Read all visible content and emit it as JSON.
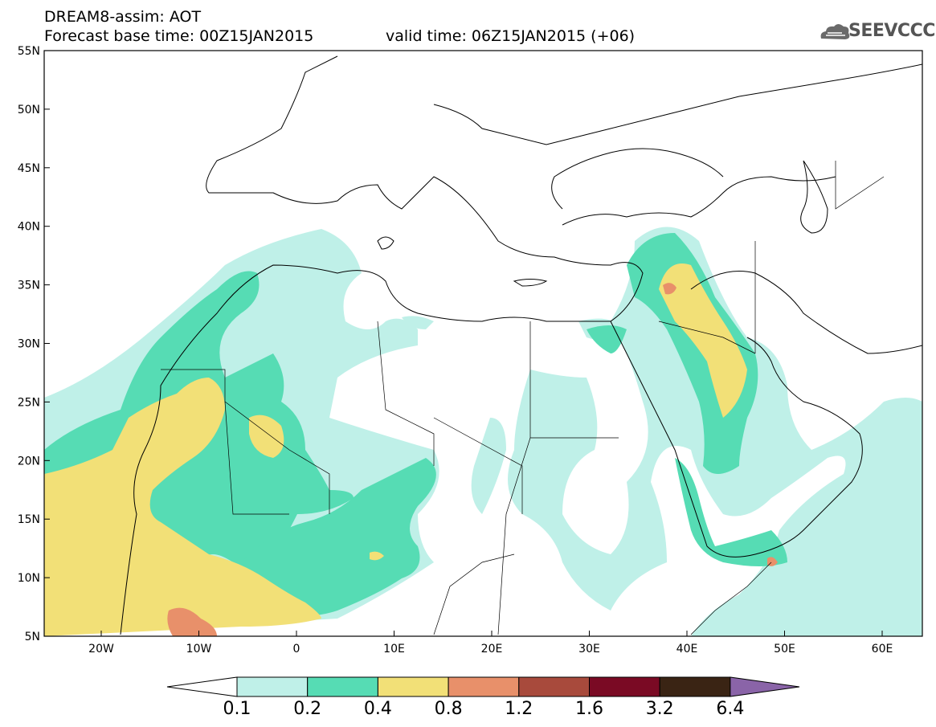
{
  "header": {
    "line1": "DREAM8-assim: AOT",
    "line2": "Forecast base time: 00Z15JAN2015",
    "valid": "valid time: 06Z15JAN2015 (+06)",
    "logo": "SEEVCCC"
  },
  "axes": {
    "lat_labels": [
      "55N",
      "50N",
      "45N",
      "40N",
      "35N",
      "30N",
      "25N",
      "20N",
      "15N",
      "10N",
      "5N"
    ],
    "lon_labels": [
      "20W",
      "10W",
      "0",
      "10E",
      "20E",
      "30E",
      "40E",
      "50E",
      "60E"
    ]
  },
  "colorbar": {
    "levels": [
      "0.1",
      "0.2",
      "0.4",
      "0.8",
      "1.2",
      "1.6",
      "3.2",
      "6.4"
    ],
    "colors": [
      "#ffffff",
      "#bff0e8",
      "#56dcb4",
      "#f2e077",
      "#e8906a",
      "#a84a3c",
      "#7a0a24",
      "#3a2414",
      "#8a64a8"
    ]
  }
}
